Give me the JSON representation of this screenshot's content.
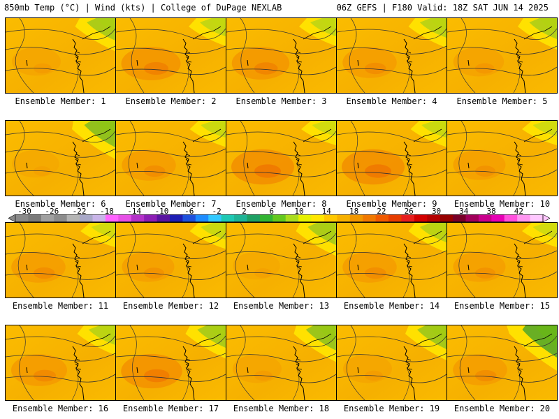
{
  "header": {
    "left": "850mb Temp (°C) | Wind (kts) | College of DuPage NEXLAB",
    "right": "06Z GEFS | F180 Valid: 18Z SAT JUN 14 2025"
  },
  "colorbar": {
    "ticks": [
      "-30",
      "-26",
      "-22",
      "-18",
      "-14",
      "-10",
      "-6",
      "-2",
      "2",
      "6",
      "10",
      "14",
      "18",
      "22",
      "26",
      "30",
      "34",
      "38",
      "42"
    ],
    "colors": [
      "#8a8a8a",
      "#7a7a7a",
      "#a0a0a0",
      "#8c8c8c",
      "#b4b4b4",
      "#a8a8c8",
      "#c8b4e8",
      "#ff64ff",
      "#e650e6",
      "#b432c8",
      "#8c1eb4",
      "#5a14a0",
      "#1e1eb4",
      "#1e50dc",
      "#1e8cff",
      "#32c8ff",
      "#1ec8b4",
      "#1eb496",
      "#1ea064",
      "#32b432",
      "#64c81e",
      "#aadc1e",
      "#e6f000",
      "#ffe600",
      "#ffc800",
      "#f6b000",
      "#f09600",
      "#f07800",
      "#f05a00",
      "#e63c00",
      "#e61e1e",
      "#d20000",
      "#b40000",
      "#960000",
      "#780028",
      "#a0005a",
      "#c8008c",
      "#e600b4",
      "#ff50dc",
      "#ff96f0",
      "#ffc8ff"
    ]
  },
  "members": [
    {
      "label": "Ensemble Member: 1",
      "green": 0.35,
      "warm": 0.2
    },
    {
      "label": "Ensemble Member: 2",
      "green": 0.2,
      "warm": 0.5
    },
    {
      "label": "Ensemble Member: 3",
      "green": 0.2,
      "warm": 0.45
    },
    {
      "label": "Ensemble Member: 4",
      "green": 0.25,
      "warm": 0.35
    },
    {
      "label": "Ensemble Member: 5",
      "green": 0.3,
      "warm": 0.25
    },
    {
      "label": "Ensemble Member: 6",
      "green": 0.5,
      "warm": 0.15
    },
    {
      "label": "Ensemble Member: 7",
      "green": 0.15,
      "warm": 0.35
    },
    {
      "label": "Ensemble Member: 8",
      "green": 0.1,
      "warm": 0.6
    },
    {
      "label": "Ensemble Member: 9",
      "green": 0.15,
      "warm": 0.6
    },
    {
      "label": "Ensemble Member: 10",
      "green": 0.1,
      "warm": 0.3
    },
    {
      "label": "Ensemble Member: 11",
      "green": 0.1,
      "warm": 0.35
    },
    {
      "label": "Ensemble Member: 12",
      "green": 0.15,
      "warm": 0.3
    },
    {
      "label": "Ensemble Member: 13",
      "green": 0.35,
      "warm": 0.15
    },
    {
      "label": "Ensemble Member: 14",
      "green": 0.25,
      "warm": 0.35
    },
    {
      "label": "Ensemble Member: 15",
      "green": 0.1,
      "warm": 0.3
    },
    {
      "label": "Ensemble Member: 16",
      "green": 0.25,
      "warm": 0.4
    },
    {
      "label": "Ensemble Member: 17",
      "green": 0.35,
      "warm": 0.55
    },
    {
      "label": "Ensemble Member: 18",
      "green": 0.45,
      "warm": 0.2
    },
    {
      "label": "Ensemble Member: 19",
      "green": 0.4,
      "warm": 0.2
    },
    {
      "label": "Ensemble Member: 20",
      "green": 0.7,
      "warm": 0.35
    }
  ]
}
